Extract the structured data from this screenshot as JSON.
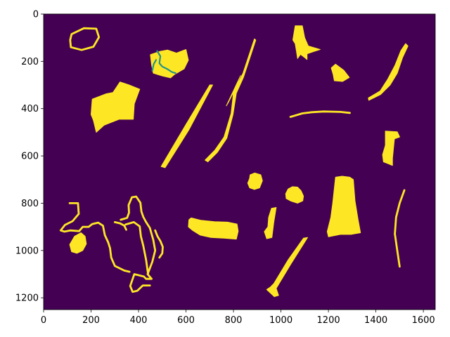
{
  "chart_data": {
    "type": "heatmap",
    "title": "",
    "xlabel": "",
    "ylabel": "",
    "xlim": [
      0,
      1650
    ],
    "ylim": [
      1250,
      0
    ],
    "grid": false,
    "legend": "none",
    "colormap": "viridis",
    "values_present": [
      0,
      1,
      2
    ],
    "colors": {
      "background": "#440154",
      "foreground": "#fde725",
      "secondary": "#21918c"
    },
    "xticks": [
      0,
      200,
      400,
      600,
      800,
      1000,
      1200,
      1400,
      1600
    ],
    "yticks": [
      0,
      200,
      400,
      600,
      800,
      1000,
      1200
    ],
    "objects": [
      {
        "name": "loop-top-left",
        "value": 1,
        "shape": "loop",
        "points": [
          [
            118,
            85
          ],
          [
            170,
            60
          ],
          [
            222,
            62
          ],
          [
            233,
            98
          ],
          [
            210,
            138
          ],
          [
            160,
            152
          ],
          [
            115,
            140
          ],
          [
            112,
            110
          ]
        ]
      },
      {
        "name": "blob-large-left",
        "value": 1,
        "shape": "polygon",
        "points": [
          [
            205,
            360
          ],
          [
            262,
            338
          ],
          [
            292,
            332
          ],
          [
            322,
            287
          ],
          [
            360,
            300
          ],
          [
            405,
            318
          ],
          [
            382,
            380
          ],
          [
            378,
            445
          ],
          [
            318,
            445
          ],
          [
            255,
            470
          ],
          [
            222,
            500
          ],
          [
            210,
            450
          ],
          [
            200,
            425
          ]
        ]
      },
      {
        "name": "blob-top-center",
        "value": 1,
        "shape": "polygon",
        "points": [
          [
            450,
            172
          ],
          [
            490,
            158
          ],
          [
            522,
            152
          ],
          [
            560,
            165
          ],
          [
            600,
            150
          ],
          [
            610,
            195
          ],
          [
            592,
            232
          ],
          [
            552,
            255
          ],
          [
            535,
            270
          ],
          [
            500,
            262
          ],
          [
            462,
            250
          ],
          [
            455,
            215
          ]
        ]
      },
      {
        "name": "streak-top-center",
        "value": 2,
        "shape": "line",
        "points": [
          [
            478,
            156
          ],
          [
            492,
            178
          ],
          [
            488,
            208
          ],
          [
            500,
            222
          ],
          [
            520,
            232
          ],
          [
            540,
            245
          ],
          [
            556,
            250
          ]
        ]
      },
      {
        "name": "streak-top-center-b",
        "value": 2,
        "shape": "line",
        "points": [
          [
            458,
            240
          ],
          [
            464,
            212
          ],
          [
            474,
            194
          ]
        ]
      },
      {
        "name": "sliver-diagonal-left",
        "value": 1,
        "shape": "polygon",
        "points": [
          [
            700,
            300
          ],
          [
            712,
            300
          ],
          [
            612,
            490
          ],
          [
            512,
            650
          ],
          [
            495,
            645
          ],
          [
            598,
            470
          ]
        ]
      },
      {
        "name": "sliver-diagonal-long",
        "value": 1,
        "shape": "polygon",
        "points": [
          [
            888,
            105
          ],
          [
            894,
            110
          ],
          [
            842,
            268
          ],
          [
            812,
            335
          ],
          [
            798,
            425
          ],
          [
            772,
            525
          ],
          [
            732,
            585
          ],
          [
            692,
            625
          ],
          [
            680,
            618
          ],
          [
            722,
            575
          ],
          [
            760,
            520
          ],
          [
            790,
            420
          ],
          [
            800,
            330
          ],
          [
            830,
            260
          ],
          [
            770,
            388
          ],
          [
            778,
            375
          ],
          [
            840,
            250
          ]
        ]
      },
      {
        "name": "blob-top-right",
        "value": 1,
        "shape": "polygon",
        "points": [
          [
            1060,
            50
          ],
          [
            1090,
            50
          ],
          [
            1100,
            100
          ],
          [
            1115,
            135
          ],
          [
            1165,
            150
          ],
          [
            1140,
            158
          ],
          [
            1110,
            168
          ],
          [
            1110,
            192
          ],
          [
            1095,
            180
          ],
          [
            1082,
            170
          ],
          [
            1070,
            188
          ],
          [
            1065,
            155
          ],
          [
            1060,
            125
          ],
          [
            1050,
            110
          ]
        ]
      },
      {
        "name": "blob-small-right-top",
        "value": 1,
        "shape": "polygon",
        "points": [
          [
            1212,
            228
          ],
          [
            1230,
            212
          ],
          [
            1265,
            238
          ],
          [
            1288,
            268
          ],
          [
            1260,
            285
          ],
          [
            1225,
            282
          ],
          [
            1220,
            255
          ]
        ]
      },
      {
        "name": "arc-right",
        "value": 1,
        "shape": "polygon",
        "points": [
          [
            1368,
            355
          ],
          [
            1418,
            325
          ],
          [
            1450,
            275
          ],
          [
            1480,
            218
          ],
          [
            1505,
            155
          ],
          [
            1525,
            125
          ],
          [
            1535,
            135
          ],
          [
            1512,
            185
          ],
          [
            1490,
            250
          ],
          [
            1460,
            300
          ],
          [
            1420,
            340
          ],
          [
            1370,
            365
          ]
        ]
      },
      {
        "name": "line-thin-right",
        "value": 1,
        "shape": "line",
        "points": [
          [
            1040,
            435
          ],
          [
            1090,
            420
          ],
          [
            1130,
            415
          ],
          [
            1180,
            412
          ],
          [
            1250,
            414
          ],
          [
            1290,
            418
          ]
        ]
      },
      {
        "name": "blob-right-middle",
        "value": 1,
        "shape": "polygon",
        "points": [
          [
            1440,
            495
          ],
          [
            1490,
            498
          ],
          [
            1500,
            520
          ],
          [
            1478,
            528
          ],
          [
            1470,
            610
          ],
          [
            1470,
            640
          ],
          [
            1450,
            632
          ],
          [
            1432,
            625
          ],
          [
            1428,
            595
          ],
          [
            1440,
            555
          ]
        ]
      },
      {
        "name": "blob-round-center",
        "value": 1,
        "shape": "polygon",
        "points": [
          [
            870,
            680
          ],
          [
            890,
            672
          ],
          [
            915,
            680
          ],
          [
            922,
            705
          ],
          [
            910,
            735
          ],
          [
            888,
            742
          ],
          [
            868,
            735
          ],
          [
            860,
            715
          ],
          [
            868,
            695
          ]
        ]
      },
      {
        "name": "blob-round-right",
        "value": 1,
        "shape": "polygon",
        "points": [
          [
            1030,
            740
          ],
          [
            1048,
            730
          ],
          [
            1070,
            732
          ],
          [
            1085,
            748
          ],
          [
            1095,
            770
          ],
          [
            1092,
            790
          ],
          [
            1070,
            800
          ],
          [
            1055,
            795
          ],
          [
            1040,
            790
          ],
          [
            1022,
            780
          ],
          [
            1020,
            760
          ]
        ]
      },
      {
        "name": "blob-tall-right",
        "value": 1,
        "shape": "polygon",
        "points": [
          [
            1230,
            690
          ],
          [
            1258,
            686
          ],
          [
            1290,
            690
          ],
          [
            1305,
            700
          ],
          [
            1312,
            790
          ],
          [
            1325,
            870
          ],
          [
            1335,
            925
          ],
          [
            1295,
            932
          ],
          [
            1250,
            932
          ],
          [
            1200,
            942
          ],
          [
            1195,
            920
          ],
          [
            1210,
            860
          ],
          [
            1218,
            800
          ]
        ]
      },
      {
        "name": "curve-far-right",
        "value": 1,
        "shape": "line",
        "points": [
          [
            1520,
            745
          ],
          [
            1500,
            800
          ],
          [
            1485,
            860
          ],
          [
            1480,
            930
          ],
          [
            1490,
            1000
          ],
          [
            1500,
            1068
          ]
        ]
      },
      {
        "name": "blob-flat-center",
        "value": 1,
        "shape": "polygon",
        "points": [
          [
            612,
            870
          ],
          [
            622,
            862
          ],
          [
            662,
            872
          ],
          [
            720,
            878
          ],
          [
            775,
            880
          ],
          [
            815,
            888
          ],
          [
            820,
            918
          ],
          [
            812,
            952
          ],
          [
            760,
            948
          ],
          [
            705,
            945
          ],
          [
            660,
            935
          ],
          [
            628,
            915
          ],
          [
            610,
            900
          ]
        ]
      },
      {
        "name": "sliver-center",
        "value": 1,
        "shape": "polygon",
        "points": [
          [
            948,
            860
          ],
          [
            960,
            822
          ],
          [
            980,
            818
          ],
          [
            970,
            880
          ],
          [
            962,
            945
          ],
          [
            940,
            950
          ],
          [
            930,
            920
          ],
          [
            945,
            900
          ]
        ]
      },
      {
        "name": "sliver-center-bottom",
        "value": 1,
        "shape": "polygon",
        "points": [
          [
            1095,
            948
          ],
          [
            1112,
            945
          ],
          [
            1040,
            1060
          ],
          [
            980,
            1160
          ],
          [
            990,
            1190
          ],
          [
            972,
            1195
          ],
          [
            940,
            1165
          ],
          [
            955,
            1155
          ],
          [
            970,
            1140
          ],
          [
            1030,
            1040
          ]
        ]
      },
      {
        "name": "wire-left",
        "value": 1,
        "shape": "line",
        "points": [
          [
            110,
            800
          ],
          [
            145,
            800
          ],
          [
            148,
            845
          ],
          [
            122,
            876
          ],
          [
            90,
            892
          ],
          [
            72,
            915
          ],
          [
            88,
            920
          ],
          [
            112,
            915
          ],
          [
            150,
            918
          ],
          [
            165,
            900
          ],
          [
            190,
            900
          ],
          [
            205,
            888
          ],
          [
            230,
            882
          ],
          [
            250,
            895
          ],
          [
            258,
            935
          ],
          [
            272,
            965
          ],
          [
            280,
            990
          ],
          [
            285,
            1030
          ],
          [
            300,
            1065
          ],
          [
            340,
            1085
          ],
          [
            362,
            1090
          ]
        ]
      },
      {
        "name": "blob-small-left",
        "value": 1,
        "shape": "polygon",
        "points": [
          [
            130,
            940
          ],
          [
            158,
            925
          ],
          [
            175,
            940
          ],
          [
            180,
            972
          ],
          [
            165,
            1000
          ],
          [
            140,
            1012
          ],
          [
            118,
            1005
          ],
          [
            110,
            975
          ]
        ]
      },
      {
        "name": "wire-tangle",
        "value": 1,
        "shape": "line",
        "points": [
          [
            325,
            870
          ],
          [
            352,
            862
          ],
          [
            360,
            840
          ],
          [
            358,
            808
          ],
          [
            372,
            775
          ],
          [
            390,
            772
          ],
          [
            408,
            798
          ],
          [
            412,
            835
          ],
          [
            420,
            858
          ],
          [
            432,
            880
          ],
          [
            448,
            905
          ],
          [
            455,
            930
          ],
          [
            462,
            955
          ],
          [
            470,
            1000
          ],
          [
            458,
            1048
          ],
          [
            438,
            1100
          ],
          [
            455,
            1120
          ],
          [
            432,
            1120
          ],
          [
            422,
            1110
          ],
          [
            382,
            1100
          ],
          [
            365,
            1150
          ],
          [
            375,
            1175
          ],
          [
            395,
            1170
          ],
          [
            418,
            1148
          ],
          [
            448,
            1148
          ]
        ]
      },
      {
        "name": "wire-tangle-b",
        "value": 1,
        "shape": "line",
        "points": [
          [
            345,
            890
          ],
          [
            380,
            880
          ],
          [
            405,
            898
          ],
          [
            410,
            940
          ],
          [
            420,
            980
          ],
          [
            432,
            1040
          ],
          [
            440,
            1098
          ]
        ]
      },
      {
        "name": "wire-tangle-c",
        "value": 1,
        "shape": "line",
        "points": [
          [
            470,
            915
          ],
          [
            480,
            940
          ],
          [
            492,
            960
          ],
          [
            502,
            985
          ],
          [
            500,
            1012
          ],
          [
            488,
            1030
          ]
        ]
      },
      {
        "name": "wire-tangle-d",
        "value": 1,
        "shape": "line",
        "points": [
          [
            300,
            880
          ],
          [
            322,
            885
          ],
          [
            340,
            895
          ],
          [
            348,
            912
          ]
        ]
      }
    ]
  }
}
